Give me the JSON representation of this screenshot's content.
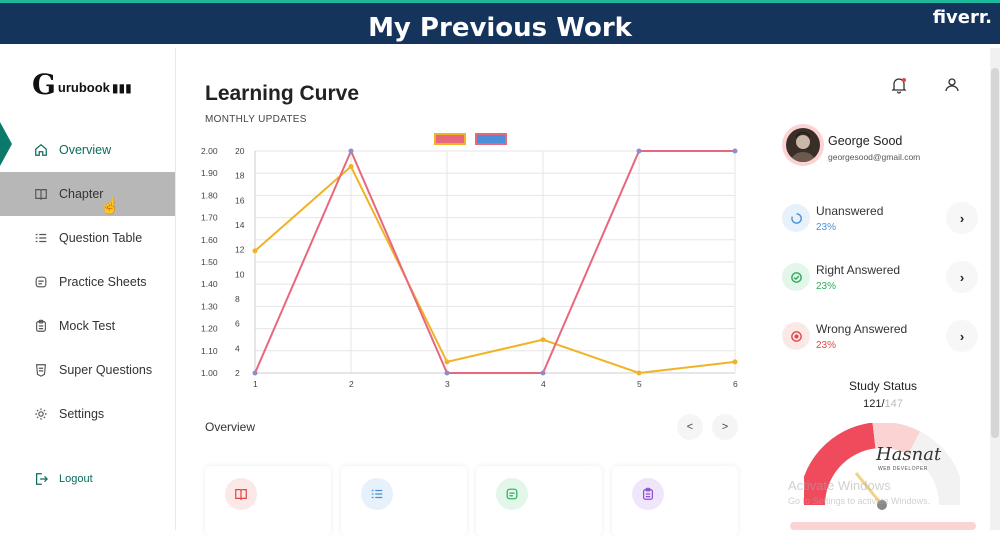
{
  "banner": {
    "title": "My Previous Work",
    "brand": "fiverr."
  },
  "sidebar": {
    "logo_text": "urubook",
    "items": [
      {
        "label": "Overview",
        "icon": "home-icon"
      },
      {
        "label": "Chapter",
        "icon": "book-icon"
      },
      {
        "label": "Question Table",
        "icon": "list-icon"
      },
      {
        "label": "Practice Sheets",
        "icon": "sheet-icon"
      },
      {
        "label": "Mock Test",
        "icon": "clipboard-icon"
      },
      {
        "label": "Super Questions",
        "icon": "shield-icon"
      },
      {
        "label": "Settings",
        "icon": "gear-icon"
      }
    ],
    "logout": "Logout"
  },
  "main": {
    "title": "Learning Curve",
    "subtitle": "MONTHLY UPDATES",
    "overview_label": "Overview",
    "prev": "<",
    "next": ">"
  },
  "chart_data": {
    "type": "line",
    "title": "",
    "x": [
      1,
      2,
      3,
      4,
      5,
      6
    ],
    "series": [
      {
        "values": [
          1.55,
          1.93,
          1.05,
          1.15,
          1.0,
          1.05
        ],
        "axis": "left",
        "color": "#f0b323"
      },
      {
        "values": [
          2,
          20,
          2,
          2,
          20,
          20
        ],
        "axis": "right",
        "color": "#e8677d"
      }
    ],
    "legend_colors": [
      "#e8677d",
      "#4a90d9"
    ],
    "y_left": {
      "ticks": [
        "2.00",
        "1.90",
        "1.80",
        "1.70",
        "1.60",
        "1.50",
        "1.40",
        "1.30",
        "1.20",
        "1.10",
        "1.00"
      ],
      "ylim": [
        1.0,
        2.0
      ]
    },
    "y_right": {
      "ticks": [
        "20",
        "18",
        "16",
        "14",
        "12",
        "10",
        "8",
        "6",
        "4",
        "2"
      ],
      "ylim": [
        2,
        20
      ]
    },
    "x_ticks": [
      "1",
      "2",
      "3",
      "4",
      "5",
      "6"
    ],
    "grid": true
  },
  "profile": {
    "name": "George Sood",
    "email": "georgesood@gmail.com"
  },
  "stats": [
    {
      "title": "Unanswered",
      "pct": "23%",
      "color": "#4a90d9",
      "bg": "#e6f1fb",
      "icon": "spinner-icon"
    },
    {
      "title": "Right Answered",
      "pct": "23%",
      "color": "#2eaa5c",
      "bg": "#e3f6ea",
      "icon": "check-circle-icon"
    },
    {
      "title": "Wrong Answered",
      "pct": "23%",
      "color": "#e04848",
      "bg": "#fde8e8",
      "icon": "target-icon"
    }
  ],
  "study": {
    "title": "Study Status",
    "done": "121",
    "sep": "/",
    "total": "147"
  },
  "watermark": {
    "line1": "Activate Windows",
    "line2": "Go to Settings to activate Windows."
  },
  "signature": {
    "name": "Hasnat",
    "sub": "WEB DEVELOPER"
  }
}
